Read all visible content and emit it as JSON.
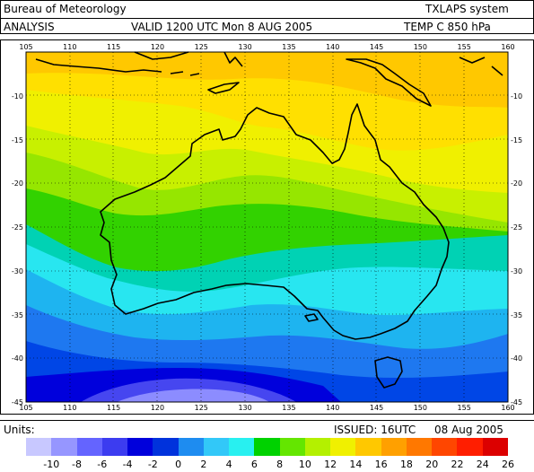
{
  "header": {
    "organisation": "Bureau of Meteorology",
    "system": "TXLAPS system",
    "analysis": "ANALYSIS",
    "valid": "VALID  1200 UTC   Mon   8 AUG 2005",
    "field": "TEMP C     850 hPa"
  },
  "map": {
    "lon_ticks_top": [
      "105",
      "110",
      "115",
      "120",
      "125",
      "130",
      "135",
      "140",
      "145",
      "150",
      "155",
      "160"
    ],
    "lon_ticks_bottom": [
      "105",
      "110",
      "115",
      "120",
      "125",
      "130",
      "135",
      "140",
      "145",
      "150",
      "155",
      "160"
    ],
    "lat_ticks_left": [
      "-10",
      "-15",
      "-20",
      "-25",
      "-30",
      "-35",
      "-40",
      "-45"
    ],
    "lat_ticks_right": [
      "-10",
      "-15",
      "-20",
      "-25",
      "-30",
      "-35",
      "-40",
      "-45"
    ],
    "lon_range": [
      105,
      160
    ],
    "lat_range": [
      -45,
      -5
    ]
  },
  "footer": {
    "units": "Units:",
    "issued": "ISSUED: 16UTC",
    "date": "08 Aug 2005"
  },
  "colorbar": {
    "labels": [
      "-10",
      "-8",
      "-6",
      "-4",
      "-2",
      "0",
      "2",
      "4",
      "6",
      "8",
      "10",
      "12",
      "14",
      "16",
      "18",
      "20",
      "22",
      "24",
      "26"
    ],
    "colors": [
      "#c8c8ff",
      "#9696ff",
      "#6464ff",
      "#3c3cf0",
      "#0000dc",
      "#0032dc",
      "#1e8cf0",
      "#32c8f8",
      "#28f0f0",
      "#00d200",
      "#64e600",
      "#b4f000",
      "#f0f000",
      "#ffc800",
      "#ffa000",
      "#ff7800",
      "#ff4600",
      "#ff1e00",
      "#dc0000"
    ]
  }
}
